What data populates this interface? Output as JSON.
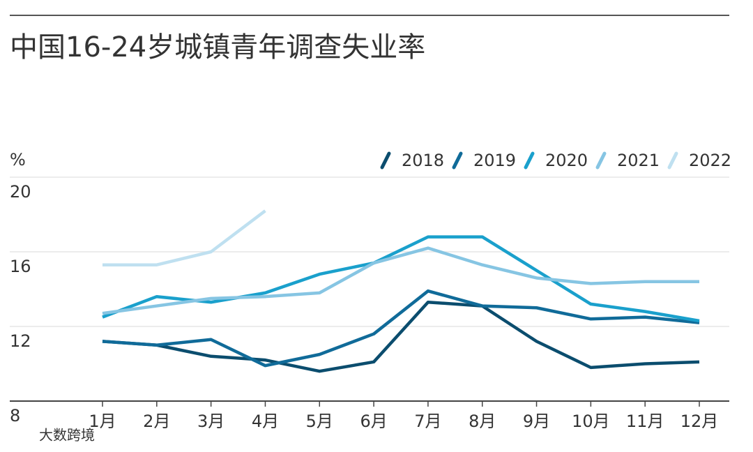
{
  "chart_data": {
    "type": "line",
    "title": "中国16-24岁城镇青年调查失业率",
    "y_label": "%",
    "watermark": "大数跨境",
    "categories": [
      "1月",
      "2月",
      "3月",
      "4月",
      "5月",
      "6月",
      "7月",
      "8月",
      "9月",
      "10月",
      "11月",
      "12月"
    ],
    "series": [
      {
        "name": "2018",
        "color": "#0b4d6e",
        "values": [
          11.2,
          11.0,
          10.4,
          10.2,
          9.6,
          10.1,
          13.3,
          13.1,
          11.2,
          9.8,
          10.0,
          10.1
        ]
      },
      {
        "name": "2019",
        "color": "#106b99",
        "values": [
          11.2,
          11.0,
          11.3,
          9.9,
          10.5,
          11.6,
          13.9,
          13.1,
          13.0,
          12.4,
          12.5,
          12.2
        ]
      },
      {
        "name": "2020",
        "color": "#1aa0cc",
        "values": [
          12.5,
          13.6,
          13.3,
          13.8,
          14.8,
          15.4,
          16.8,
          16.8,
          15.0,
          13.2,
          12.8,
          12.3
        ]
      },
      {
        "name": "2021",
        "color": "#86c5e3",
        "values": [
          12.7,
          13.1,
          13.5,
          13.6,
          13.8,
          15.4,
          16.2,
          15.3,
          14.6,
          14.3,
          14.4,
          14.4
        ]
      },
      {
        "name": "2022",
        "color": "#bfe0f0",
        "values": [
          15.3,
          15.3,
          16.0,
          18.2,
          null,
          null,
          null,
          null,
          null,
          null,
          null,
          null
        ]
      }
    ],
    "ylim": [
      8,
      20
    ],
    "yticks": [
      8,
      12,
      16,
      20
    ],
    "grid": true
  }
}
